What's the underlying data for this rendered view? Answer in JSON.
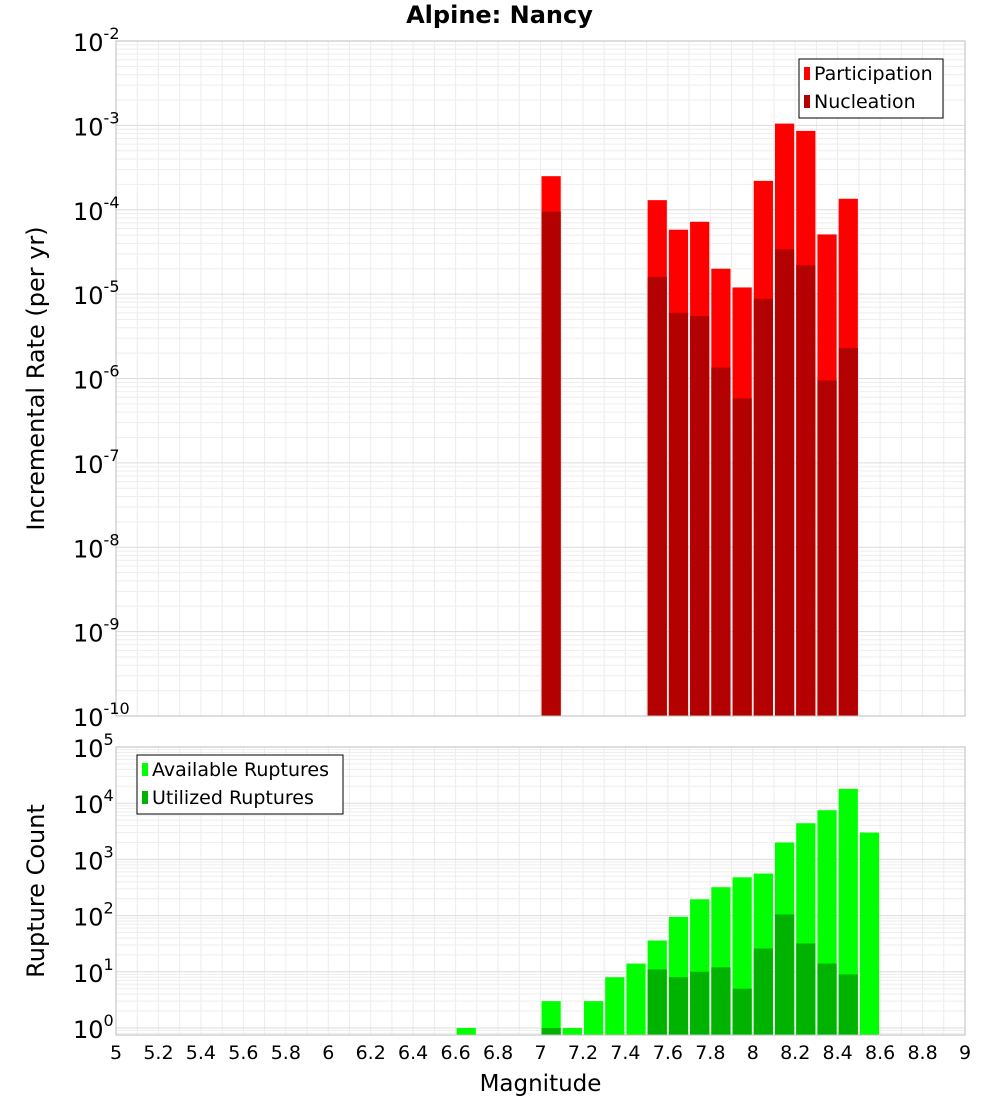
{
  "chart_data": [
    {
      "type": "bar",
      "title": "Alpine: Nancy",
      "ylabel": "Incremental Rate (per yr)",
      "y_scale": "log",
      "ylim": [
        1e-10,
        0.01
      ],
      "y_tick_exponents": [
        "-10",
        "-9",
        "-8",
        "-7",
        "-6",
        "-5",
        "-4",
        "-3",
        "-2"
      ],
      "xlim": [
        5,
        9
      ],
      "bar_width": 0.1,
      "grid": true,
      "legend_position": "top-right",
      "series": [
        {
          "name": "Participation",
          "color": "#ff0000",
          "points": [
            {
              "x": 7.05,
              "y": 0.00025
            },
            {
              "x": 7.55,
              "y": 0.00013
            },
            {
              "x": 7.65,
              "y": 5.8e-05
            },
            {
              "x": 7.75,
              "y": 7.2e-05
            },
            {
              "x": 7.85,
              "y": 2e-05
            },
            {
              "x": 7.95,
              "y": 1.2e-05
            },
            {
              "x": 8.05,
              "y": 0.00022
            },
            {
              "x": 8.15,
              "y": 0.00105
            },
            {
              "x": 8.25,
              "y": 0.00086
            },
            {
              "x": 8.35,
              "y": 5.1e-05
            },
            {
              "x": 8.45,
              "y": 0.000135
            }
          ]
        },
        {
          "name": "Nucleation",
          "color": "#b30000",
          "points": [
            {
              "x": 7.05,
              "y": 9.5e-05
            },
            {
              "x": 7.55,
              "y": 1.6e-05
            },
            {
              "x": 7.65,
              "y": 6e-06
            },
            {
              "x": 7.75,
              "y": 5.5e-06
            },
            {
              "x": 7.85,
              "y": 1.35e-06
            },
            {
              "x": 7.95,
              "y": 5.8e-07
            },
            {
              "x": 8.05,
              "y": 8.8e-06
            },
            {
              "x": 8.15,
              "y": 3.4e-05
            },
            {
              "x": 8.25,
              "y": 2.2e-05
            },
            {
              "x": 8.35,
              "y": 9.5e-07
            },
            {
              "x": 8.45,
              "y": 2.3e-06
            }
          ]
        }
      ]
    },
    {
      "type": "bar",
      "xlabel": "Magnitude",
      "ylabel": "Rupture Count",
      "y_scale": "log",
      "ylim": [
        0.75,
        100000
      ],
      "y_tick_exponents": [
        "0",
        "1",
        "2",
        "3",
        "4",
        "5"
      ],
      "xlim": [
        5,
        9
      ],
      "x_ticks": [
        "5",
        "5.2",
        "5.4",
        "5.6",
        "5.8",
        "6",
        "6.2",
        "6.4",
        "6.6",
        "6.8",
        "7",
        "7.2",
        "7.4",
        "7.6",
        "7.8",
        "8",
        "8.2",
        "8.4",
        "8.6",
        "8.8",
        "9"
      ],
      "bar_width": 0.1,
      "grid": true,
      "legend_position": "top-left",
      "series": [
        {
          "name": "Available Ruptures",
          "color": "#00ff00",
          "points": [
            {
              "x": 6.65,
              "y": 1
            },
            {
              "x": 7.05,
              "y": 3
            },
            {
              "x": 7.15,
              "y": 1
            },
            {
              "x": 7.25,
              "y": 3
            },
            {
              "x": 7.35,
              "y": 8
            },
            {
              "x": 7.45,
              "y": 14
            },
            {
              "x": 7.55,
              "y": 36
            },
            {
              "x": 7.65,
              "y": 95
            },
            {
              "x": 7.75,
              "y": 195
            },
            {
              "x": 7.85,
              "y": 320
            },
            {
              "x": 7.95,
              "y": 480
            },
            {
              "x": 8.05,
              "y": 560
            },
            {
              "x": 8.15,
              "y": 2000
            },
            {
              "x": 8.25,
              "y": 4400
            },
            {
              "x": 8.35,
              "y": 7500
            },
            {
              "x": 8.45,
              "y": 18000
            },
            {
              "x": 8.55,
              "y": 3000
            }
          ]
        },
        {
          "name": "Utilized Ruptures",
          "color": "#00b300",
          "points": [
            {
              "x": 7.05,
              "y": 1
            },
            {
              "x": 7.55,
              "y": 11
            },
            {
              "x": 7.65,
              "y": 8
            },
            {
              "x": 7.75,
              "y": 10
            },
            {
              "x": 7.85,
              "y": 12
            },
            {
              "x": 7.95,
              "y": 5
            },
            {
              "x": 8.05,
              "y": 26
            },
            {
              "x": 8.15,
              "y": 105
            },
            {
              "x": 8.25,
              "y": 32
            },
            {
              "x": 8.35,
              "y": 14
            },
            {
              "x": 8.45,
              "y": 9
            }
          ]
        }
      ]
    }
  ]
}
